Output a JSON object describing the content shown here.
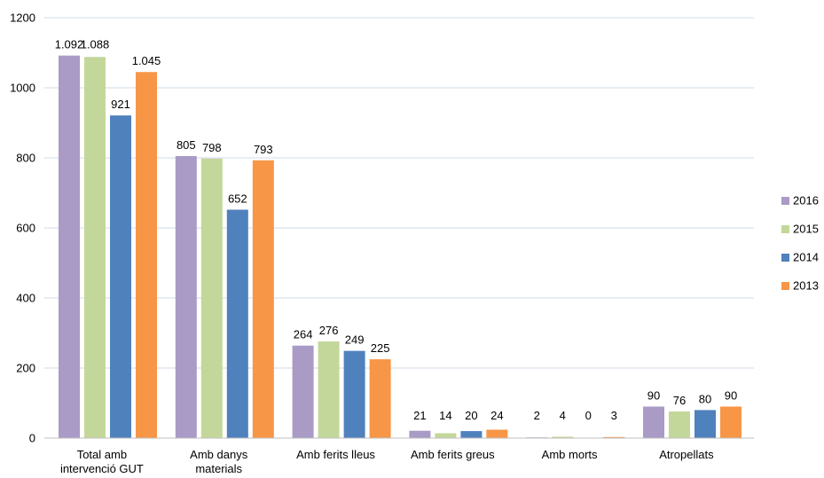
{
  "chart_data": {
    "type": "bar",
    "categories": [
      [
        "Total amb",
        "intervenció  GUT"
      ],
      [
        "Amb danys",
        "materials"
      ],
      [
        "Amb ferits lleus"
      ],
      [
        "Amb ferits greus"
      ],
      [
        "Amb morts"
      ],
      [
        "Atropellats"
      ]
    ],
    "series": [
      {
        "name": "2016",
        "color": "#a99bc6",
        "values": [
          1092,
          805,
          264,
          21,
          2,
          90
        ],
        "labels": [
          "1.092",
          "805",
          "264",
          "21",
          "2",
          "90"
        ]
      },
      {
        "name": "2015",
        "color": "#c4d79b",
        "values": [
          1088,
          798,
          276,
          14,
          4,
          76
        ],
        "labels": [
          "1.088",
          "798",
          "276",
          "14",
          "4",
          "76"
        ]
      },
      {
        "name": "2014",
        "color": "#4f81bd",
        "values": [
          921,
          652,
          249,
          20,
          0,
          80
        ],
        "labels": [
          "921",
          "652",
          "249",
          "20",
          "0",
          "80"
        ]
      },
      {
        "name": "2013",
        "color": "#f79646",
        "values": [
          1045,
          793,
          225,
          24,
          3,
          90
        ],
        "labels": [
          "1.045",
          "793",
          "225",
          "24",
          "3",
          "90"
        ]
      }
    ],
    "ylim": [
      0,
      1200
    ],
    "yticks": [
      0,
      200,
      400,
      600,
      800,
      1000,
      1200
    ],
    "grid": true,
    "legend_position": "right",
    "title": "",
    "xlabel": "",
    "ylabel": ""
  }
}
